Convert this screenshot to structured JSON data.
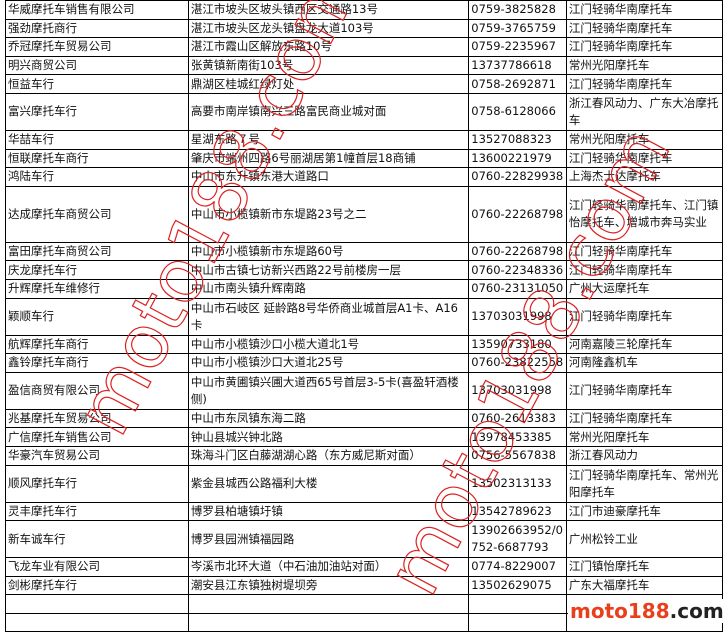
{
  "rows": [
    [
      "华威摩托车销售有限公司",
      "湛江市坡头区坡头镇西区交通路13号",
      "0759-3825828",
      "江门轻骑华南摩托车"
    ],
    [
      "强劲摩托商行",
      "湛江市坡头区龙头镇盘龙大道103号",
      "0759-3765759",
      "江门轻骑华南摩托车"
    ],
    [
      "乔冠摩托车贸易公司",
      "湛江市霞山区解放东路10号",
      "0759-2235967",
      "江门轻骑华南摩托车"
    ],
    [
      "明兴商贸公司",
      "张黄镇新南街103号",
      "13737786618",
      "常州光阳摩托车"
    ],
    [
      "恒益车行",
      "鼎湖区桂城红绿灯处",
      "0758-2692871",
      "江门轻骑华南摩托车"
    ],
    [
      "富兴摩托车行",
      "高要市南岸镇南兴三路富民商业城对面",
      "0758-6128066",
      "浙江春风动力、广东大冶摩托车"
    ],
    [
      "华喆车行",
      "星湖东路７号",
      "13527088323",
      "常州光阳摩托车"
    ],
    [
      "恒联摩托车商行",
      "肇庆市端州四路6号丽湖居第1幢首层18商铺",
      "13600221979",
      "江门轻骑华南摩托车"
    ],
    [
      "鸿陆车行",
      "中山市东升镇东港大道路口",
      "0760-22829938",
      "上海杰士达摩托车"
    ],
    [
      "达成摩托车商贸公司",
      "中山市小榄镇新市东堤路23号之二",
      "0760-22268798",
      "江门轻骑华南摩托车、江门镇怡摩托车、增城市奔马实业"
    ],
    [
      "富田摩托车商贸公司",
      "中山市小榄镇新市东堤路60号",
      "0760-22268798",
      "江门轻骑华南摩托车"
    ],
    [
      "庆龙摩托车行",
      "中山市古镇七访新兴西路22号前楼房一层",
      "0760-22348336",
      "江门轻骑华南摩托车"
    ],
    [
      "升辉摩托车维修行",
      "中山市南头镇升辉南路",
      "0760-23131050",
      "广州大运摩托车"
    ],
    [
      "颖顺车行",
      "中山市石岐区 延龄路8号华侨商业城首层A1卡、A16卡",
      "13703031998",
      "江门轻骑华南摩托车"
    ],
    [
      "航辉摩托车商行",
      "中山市小榄镇沙口小榄大道北1号",
      "13590733180",
      "河南嘉陵三轮摩托车"
    ],
    [
      "鑫铃摩托车商行",
      "中山市小榄镇沙口大道北25号",
      "0760-23822558",
      "河南隆鑫机车"
    ],
    [
      "盈信商贸有限公司",
      "中山市黄圃镇兴圃大道西65号首层3-5卡(喜盈轩酒楼侧)",
      "13703031998",
      "江门轻骑华南摩托车"
    ],
    [
      "兆基摩托车贸易公司",
      "中山市东凤镇东海二路",
      "0760-2613383",
      "江门轻骑华南摩托车"
    ],
    [
      "广信摩托车销售公司",
      "钟山县城兴钟北路",
      "13978453385",
      "常州光阳摩托车"
    ],
    [
      "华豪汽车贸易公司",
      "珠海斗门区白藤湖湖心路（东方威尼斯对面）",
      "0756-5567838",
      "浙江春风动力"
    ],
    [
      "顺风摩托车行",
      "紫金县城西公路福利大楼",
      "13502313133",
      "江门轻骑华南摩托车、常州光阳摩托车"
    ],
    [
      "灵丰摩托车行",
      "博罗县柏塘镇圩镇",
      "13542789623",
      "江门市迪豪摩托车"
    ],
    [
      "新车诚车行",
      "博罗县园洲镇福园路",
      "13902663952/0752-6687793",
      "广州松铃工业"
    ],
    [
      "飞龙车业有限公司",
      "岑溪市北环大道（中石油加油站对面）",
      "0774-8229007",
      "江门镇怡摩托车"
    ],
    [
      "剑彬摩托车行",
      "潮安县江东镇独树堤坝旁",
      "13502629075",
      "广东大福摩托车"
    ],
    [
      "",
      "",
      "",
      ""
    ],
    [
      "",
      "",
      "",
      ""
    ]
  ],
  "row_lines": [
    1,
    1,
    1,
    1,
    1,
    2,
    1,
    1,
    1,
    3,
    1,
    1,
    1,
    2,
    1,
    1,
    2,
    1,
    1,
    1,
    2,
    1,
    2,
    1,
    1,
    1,
    1
  ],
  "watermark": "moto188.com",
  "logo": {
    "brand": "moto188",
    "suffix": ".com",
    "brand_color": "#e8401c"
  }
}
